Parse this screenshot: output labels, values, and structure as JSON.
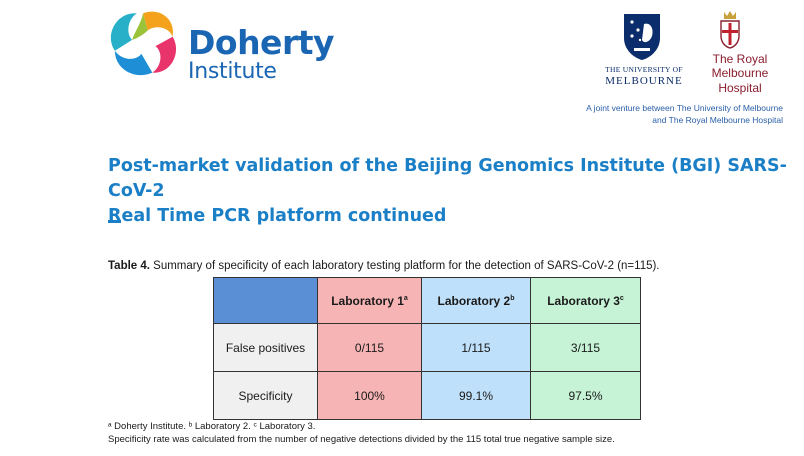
{
  "header": {
    "doherty": {
      "name_line1": "Doherty",
      "name_line2": "Institute"
    },
    "uom": {
      "line1": "THE UNIVERSITY OF",
      "line2": "MELBOURNE"
    },
    "rmh": {
      "line1": "The Royal",
      "line2": "Melbourne",
      "line3": "Hospital"
    },
    "joint_venture": {
      "line1": "A joint venture between The University of Melbourne",
      "line2": "and The Royal Melbourne Hospital"
    }
  },
  "title": {
    "line1": "Post-market validation of the Beijing Genomics Institute (BGI) SARS-CoV-2",
    "line2": "Real Time PCR platform continued"
  },
  "table": {
    "caption_label": "Table 4.",
    "caption_text": " Summary of specificity of each laboratory testing platform for the detection of SARS-CoV-2 (n=115).",
    "columns": [
      {
        "label": "Laboratory 1",
        "sup": "a"
      },
      {
        "label": "Laboratory 2",
        "sup": "b"
      },
      {
        "label": "Laboratory 3",
        "sup": "c"
      }
    ],
    "rows": [
      {
        "label": "False positives",
        "values": [
          "0/115",
          "1/115",
          "3/115"
        ]
      },
      {
        "label": "Specificity",
        "values": [
          "100%",
          "99.1%",
          "97.5%"
        ]
      }
    ]
  },
  "footnotes": {
    "line1": "ᵃ Doherty Institute. ᵇ Laboratory 2. ᶜ Laboratory 3.",
    "line2": "Specificity rate was calculated from the number of negative detections divided by the 115 total true negative sample size."
  },
  "colors": {
    "brand_blue": "#1a66b3",
    "title_blue": "#1a7fc6",
    "lab1_pink": "#f7b4b4",
    "lab2_blue": "#bfe0fa",
    "lab3_green": "#c6f3d6",
    "header_blue": "#5a8fd6"
  }
}
